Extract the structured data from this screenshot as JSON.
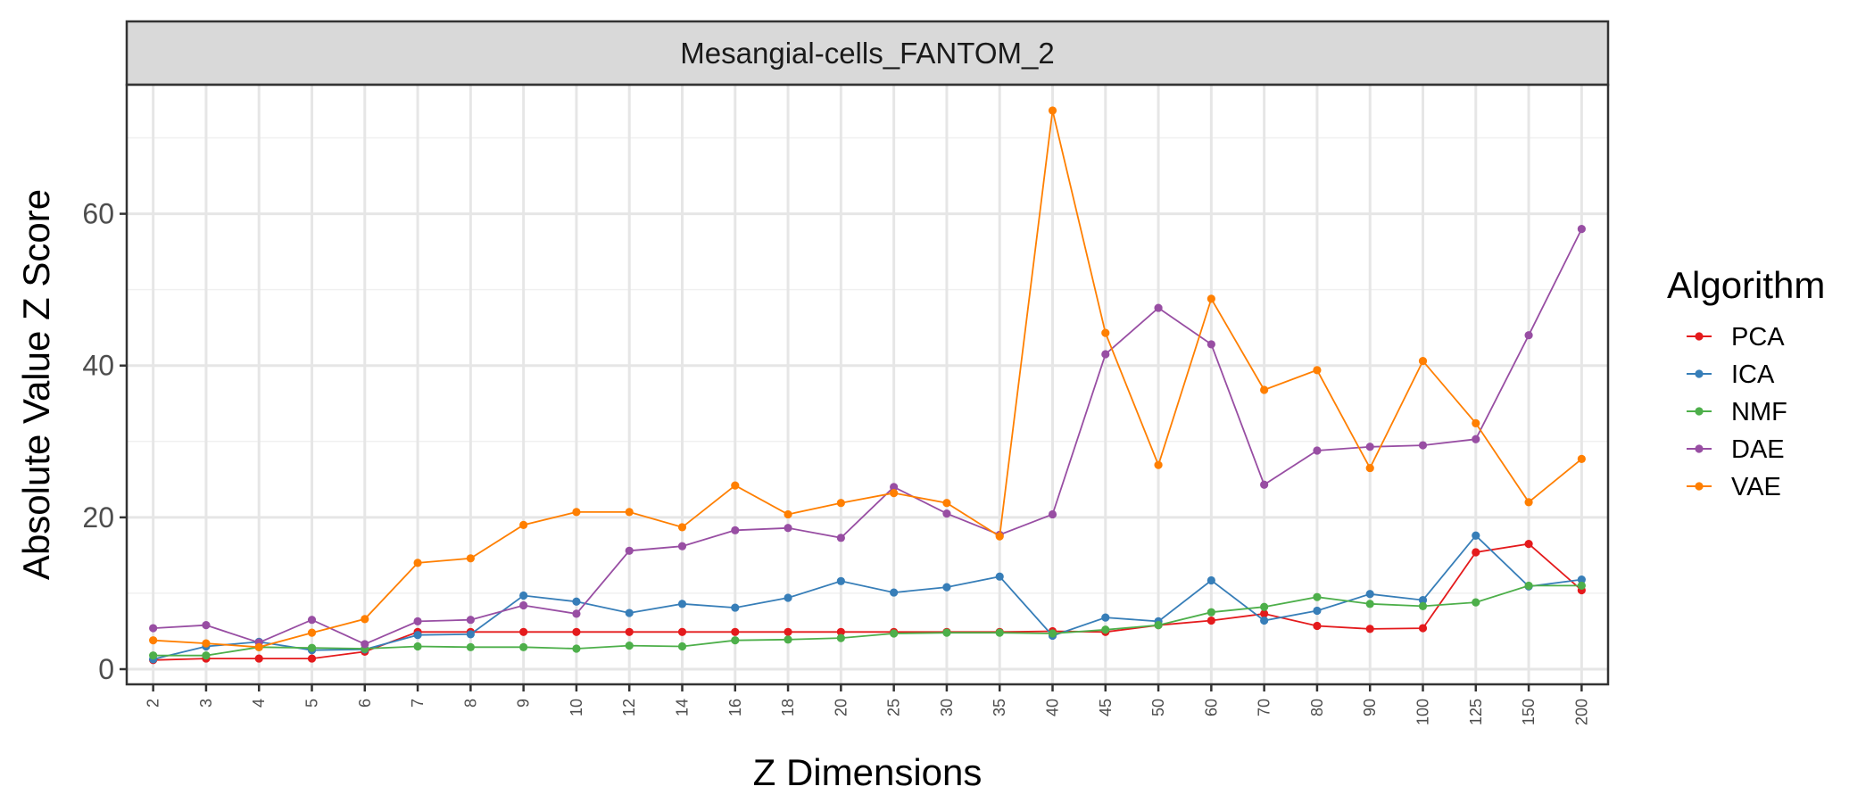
{
  "chart_data": {
    "type": "line",
    "title": "Mesangial-cells_FANTOM_2",
    "xlabel": "Z Dimensions",
    "ylabel": "Absolute Value Z Score",
    "categories": [
      "2",
      "3",
      "4",
      "5",
      "6",
      "7",
      "8",
      "9",
      "10",
      "12",
      "14",
      "16",
      "18",
      "20",
      "25",
      "30",
      "35",
      "40",
      "45",
      "50",
      "60",
      "70",
      "80",
      "90",
      "100",
      "125",
      "150",
      "200"
    ],
    "ylim": [
      -2,
      77
    ],
    "yticks": [
      0,
      20,
      40,
      60
    ],
    "grid": true,
    "legend": {
      "title": "Algorithm",
      "position": "right"
    },
    "series": [
      {
        "name": "PCA",
        "color": "#e41a1c",
        "values": [
          1.2,
          1.4,
          1.4,
          1.4,
          2.3,
          4.9,
          4.9,
          4.9,
          4.9,
          4.9,
          4.9,
          4.9,
          4.9,
          4.9,
          4.9,
          4.9,
          4.9,
          5.0,
          4.9,
          5.8,
          6.4,
          7.3,
          5.7,
          5.3,
          5.4,
          15.4,
          16.5,
          10.4
        ]
      },
      {
        "name": "ICA",
        "color": "#377eb8",
        "values": [
          1.3,
          3.0,
          3.6,
          2.5,
          2.6,
          4.5,
          4.6,
          9.7,
          8.9,
          7.4,
          8.6,
          8.1,
          9.4,
          11.6,
          10.1,
          10.8,
          12.2,
          4.4,
          6.8,
          6.3,
          11.7,
          6.4,
          7.7,
          9.9,
          9.1,
          17.6,
          10.9,
          11.8
        ]
      },
      {
        "name": "NMF",
        "color": "#4daf4a",
        "values": [
          1.8,
          1.8,
          2.9,
          2.8,
          2.7,
          3.0,
          2.9,
          2.9,
          2.7,
          3.1,
          3.0,
          3.8,
          3.9,
          4.1,
          4.7,
          4.8,
          4.8,
          4.7,
          5.2,
          5.8,
          7.5,
          8.2,
          9.5,
          8.6,
          8.3,
          8.8,
          11.0,
          11.0
        ]
      },
      {
        "name": "DAE",
        "color": "#984ea3",
        "values": [
          5.4,
          5.8,
          3.5,
          6.5,
          3.3,
          6.3,
          6.5,
          8.4,
          7.3,
          15.6,
          16.2,
          18.3,
          18.6,
          17.3,
          24.0,
          20.5,
          17.7,
          20.4,
          41.5,
          47.6,
          42.8,
          24.3,
          28.8,
          29.3,
          29.5,
          30.3,
          44.0,
          58.0
        ]
      },
      {
        "name": "VAE",
        "color": "#ff7f00",
        "values": [
          3.8,
          3.4,
          2.9,
          4.8,
          6.6,
          14.0,
          14.6,
          19.0,
          20.7,
          20.7,
          18.7,
          24.2,
          20.4,
          21.9,
          23.2,
          21.9,
          17.5,
          73.6,
          44.3,
          26.9,
          48.8,
          36.8,
          39.4,
          26.5,
          40.6,
          32.4,
          22.0,
          27.7
        ]
      }
    ]
  }
}
